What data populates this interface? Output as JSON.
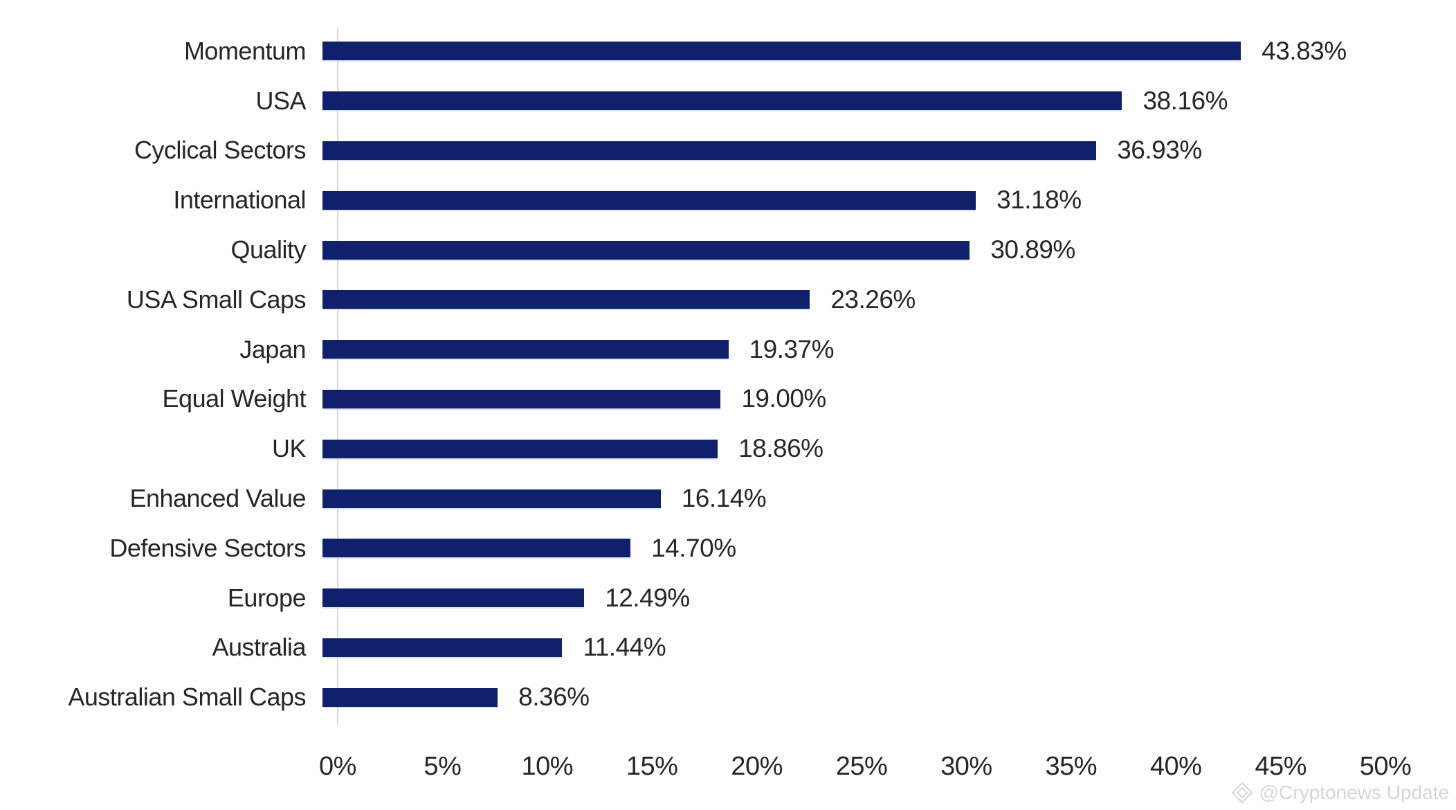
{
  "chart_data": {
    "type": "bar",
    "orientation": "horizontal",
    "title": "",
    "xlabel": "",
    "ylabel": "",
    "categories": [
      "Momentum",
      "USA",
      "Cyclical Sectors",
      "International",
      "Quality",
      "USA Small Caps",
      "Japan",
      "Equal Weight",
      "UK",
      "Enhanced Value",
      "Defensive Sectors",
      "Europe",
      "Australia",
      "Australian Small Caps"
    ],
    "values": [
      43.83,
      38.16,
      36.93,
      31.18,
      30.89,
      23.26,
      19.37,
      19.0,
      18.86,
      16.14,
      14.7,
      12.49,
      11.44,
      8.36
    ],
    "value_labels": [
      "43.83%",
      "38.16%",
      "36.93%",
      "31.18%",
      "30.89%",
      "23.26%",
      "19.37%",
      "19.00%",
      "18.86%",
      "16.14%",
      "14.70%",
      "12.49%",
      "11.44%",
      "8.36%"
    ],
    "xlim": [
      0,
      50
    ],
    "x_ticks": [
      "0%",
      "5%",
      "10%",
      "15%",
      "20%",
      "25%",
      "30%",
      "35%",
      "40%",
      "45%",
      "50%"
    ],
    "x_tick_values": [
      0,
      5,
      10,
      15,
      20,
      25,
      30,
      35,
      40,
      45,
      50
    ],
    "grid": false,
    "legend": false,
    "bar_color": "#11206B",
    "axis_line_color": "#d9d9d9",
    "label_color": "#262626"
  },
  "watermark": {
    "text": "@Cryptonews Update",
    "icon": "diamond-icon",
    "color": "#d6d6d6"
  }
}
